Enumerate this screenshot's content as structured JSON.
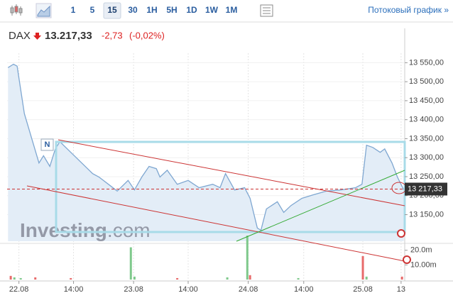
{
  "toolbar": {
    "intervals": [
      "1",
      "5",
      "15",
      "30",
      "1H",
      "5H",
      "1D",
      "1W",
      "1M"
    ],
    "active": "15",
    "stream_link": "Потоковый график »"
  },
  "header": {
    "symbol": "DAX",
    "price": "13.217,33",
    "change": "-2,73",
    "change_pct": "(-0,02%)"
  },
  "watermark": [
    "Investing",
    ".com"
  ],
  "marker": "N",
  "chart_data": [
    {
      "type": "area",
      "color": "#7fa7d1",
      "x": [
        -1.2,
        -0.6,
        -0.2,
        0.6,
        1.4,
        2.2,
        2.7,
        3.4,
        4.0,
        4.5,
        5.7,
        6.9,
        8.1,
        8.8,
        10.0,
        10.8,
        12.0,
        12.7,
        13.5,
        14.3,
        15.1,
        15.5,
        16.3,
        17.4,
        18.6,
        19.8,
        21.3,
        22.1,
        22.7,
        23.7,
        24.8,
        25.4,
        26.2,
        26.6,
        27.2,
        28.4,
        29.1,
        29.9,
        31.1,
        32.3,
        33.8,
        35.4,
        37.0,
        37.7,
        38.2,
        38.9,
        39.7,
        40.2,
        41.0,
        41.6,
        42.3
      ],
      "values": [
        13537,
        13546,
        13541,
        13416,
        13351,
        13286,
        13305,
        13277,
        13323,
        13342,
        13314,
        13286,
        13258,
        13249,
        13227,
        13212,
        13240,
        13215,
        13249,
        13277,
        13271,
        13249,
        13267,
        13230,
        13240,
        13221,
        13230,
        13221,
        13258,
        13215,
        13221,
        13193,
        13115,
        13109,
        13165,
        13184,
        13156,
        13174,
        13193,
        13202,
        13212,
        13215,
        13221,
        13230,
        13333,
        13327,
        13314,
        13323,
        13286,
        13249,
        13215
      ],
      "xlim": [
        -1.3,
        42.4
      ],
      "ylim": [
        13080,
        13575
      ],
      "xticks": [
        {
          "value": 0,
          "label": "22.08"
        },
        {
          "value": 6,
          "label": "14:00"
        },
        {
          "value": 12.6,
          "label": "23.08"
        },
        {
          "value": 18.6,
          "label": "14:00"
        },
        {
          "value": 25.2,
          "label": "24.08"
        },
        {
          "value": 31.3,
          "label": "14:00"
        },
        {
          "value": 37.8,
          "label": "25.08"
        },
        {
          "value": 42,
          "label": "13"
        }
      ],
      "yticks": [
        {
          "value": 13150,
          "label": "13 150,00"
        },
        {
          "value": 13200,
          "label": "13 200,00"
        },
        {
          "value": 13250,
          "label": "13 250,00"
        },
        {
          "value": 13300,
          "label": "13 300,00"
        },
        {
          "value": 13350,
          "label": "13 350,00"
        },
        {
          "value": 13400,
          "label": "13 400,00"
        },
        {
          "value": 13450,
          "label": "13 450,00"
        },
        {
          "value": 13500,
          "label": "13 500,00"
        },
        {
          "value": 13550,
          "label": "13 550,00"
        }
      ],
      "current": {
        "value": 13217.33,
        "label": "13 217,33"
      },
      "grid": true
    },
    {
      "type": "bar",
      "x": [
        -0.9,
        -0.5,
        0.2,
        1.8,
        5.7,
        12.3,
        12.7,
        17.4,
        22.9,
        25.1,
        25.4,
        30.7,
        37.8,
        38.2,
        42.1
      ],
      "values": [
        2.5,
        1.5,
        1,
        1.5,
        1,
        22,
        2,
        1,
        1.5,
        30,
        3,
        1,
        16,
        2,
        2
      ],
      "colors": [
        "#e86b6b",
        "#7fc98c",
        "#7fc98c",
        "#e86b6b",
        "#e86b6b",
        "#7fc98c",
        "#7fc98c",
        "#e86b6b",
        "#7fc98c",
        "#7fc98c",
        "#e86b6b",
        "#7fc98c",
        "#e86b6b",
        "#7fc98c",
        "#e86b6b"
      ],
      "xlim": [
        -1.3,
        42.4
      ],
      "ylim": [
        0,
        31
      ],
      "yticks": [
        {
          "value": 10,
          "label": "10.00m"
        },
        {
          "value": 20,
          "label": "20.0m"
        }
      ]
    }
  ]
}
